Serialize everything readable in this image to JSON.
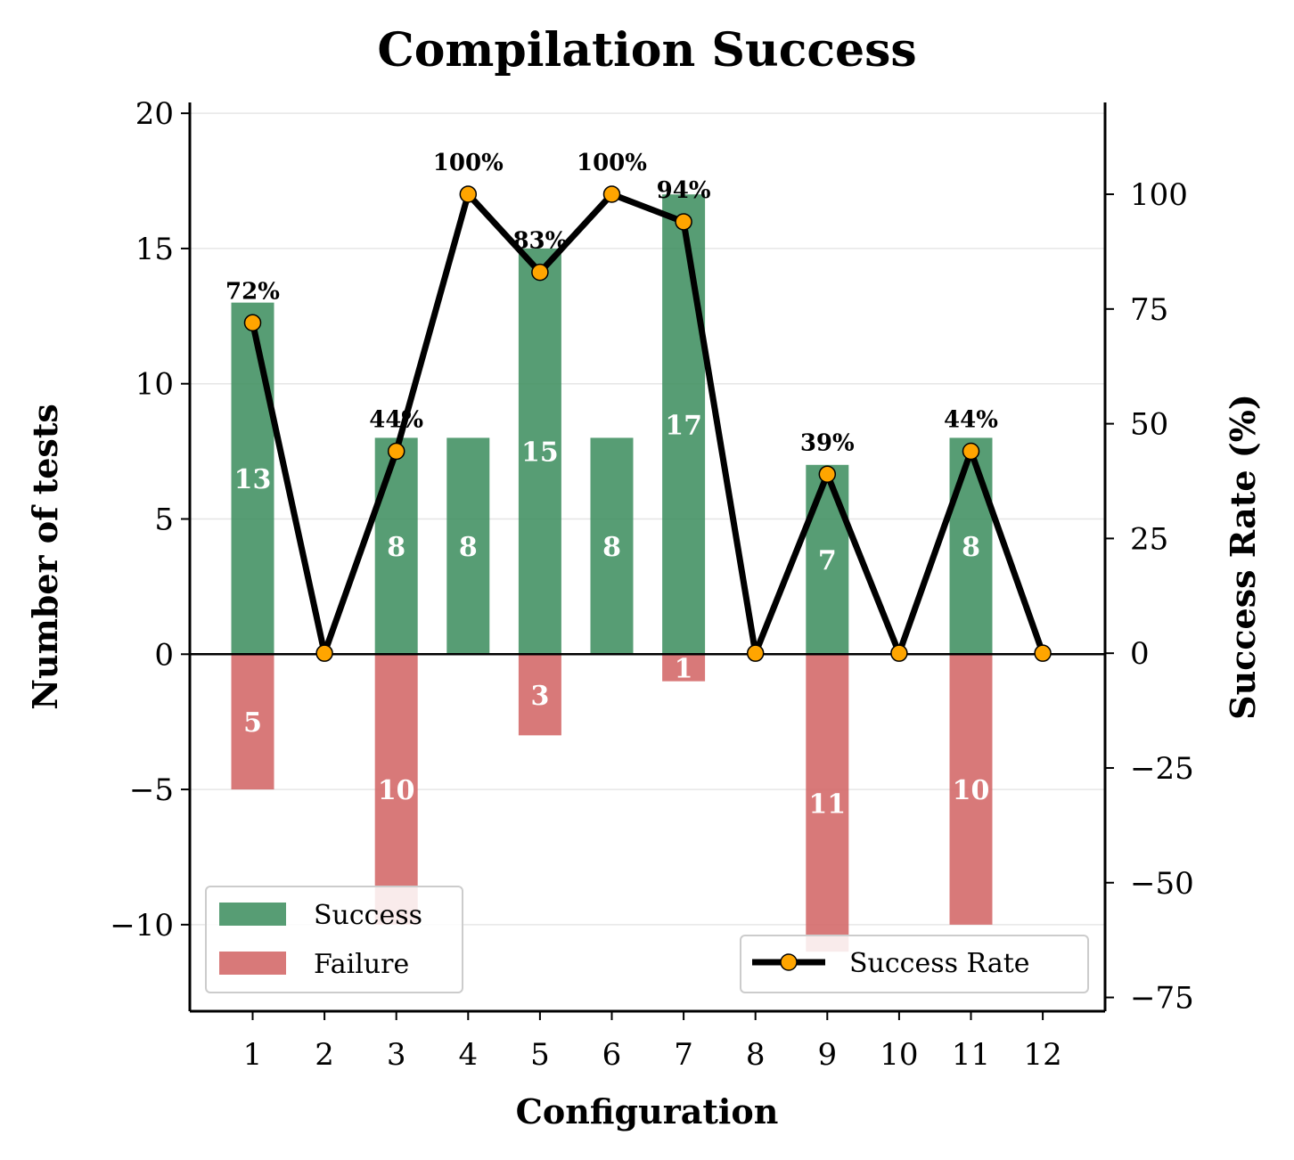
{
  "chart_data": {
    "type": "bar",
    "title": "Compilation Success",
    "xlabel": "Configuration",
    "ylabel": "Number of tests",
    "y2label": "Success Rate (%)",
    "categories": [
      "1",
      "2",
      "3",
      "4",
      "5",
      "6",
      "7",
      "8",
      "9",
      "10",
      "11",
      "12"
    ],
    "series": [
      {
        "name": "Success",
        "values": [
          13,
          0,
          8,
          8,
          15,
          8,
          17,
          0,
          7,
          0,
          8,
          0
        ],
        "color": "#3a8c5c"
      },
      {
        "name": "Failure",
        "values": [
          5,
          0,
          10,
          0,
          3,
          0,
          1,
          0,
          11,
          0,
          10,
          0
        ],
        "color": "#d46a6a"
      },
      {
        "name": "Success Rate",
        "axis": "right",
        "type": "line",
        "values": [
          72,
          0,
          44,
          100,
          83,
          100,
          94,
          0,
          39,
          0,
          44,
          0
        ],
        "point_labels": [
          "72%",
          "",
          "44%",
          "100%",
          "83%",
          "100%",
          "94%",
          "",
          "39%",
          "",
          "44%",
          ""
        ],
        "color": "#000000",
        "marker_color": "#ffa500"
      }
    ],
    "bar_labels": {
      "success": [
        "13",
        "",
        "8",
        "8",
        "15",
        "8",
        "17",
        "",
        "7",
        "",
        "8",
        ""
      ],
      "failure": [
        "5",
        "",
        "10",
        "",
        "3",
        "",
        "1",
        "",
        "11",
        "",
        "10",
        ""
      ]
    },
    "ylim": [
      -13.2,
      20.4
    ],
    "y2lim": [
      -78,
      120
    ],
    "yticks": [
      -10,
      -5,
      0,
      5,
      10,
      15,
      20
    ],
    "ytick_labels": [
      "−10",
      "−5",
      "0",
      "5",
      "10",
      "15",
      "20"
    ],
    "y2ticks": [
      -75,
      -50,
      -25,
      0,
      25,
      50,
      75,
      100
    ],
    "y2tick_labels": [
      "−75",
      "−50",
      "−25",
      "0",
      "25",
      "50",
      "75",
      "100"
    ],
    "grid": "horizontal",
    "legend": [
      {
        "position": "lower-left",
        "entries": [
          "Success",
          "Failure"
        ]
      },
      {
        "position": "lower-right",
        "entries": [
          "Success Rate"
        ]
      }
    ]
  }
}
